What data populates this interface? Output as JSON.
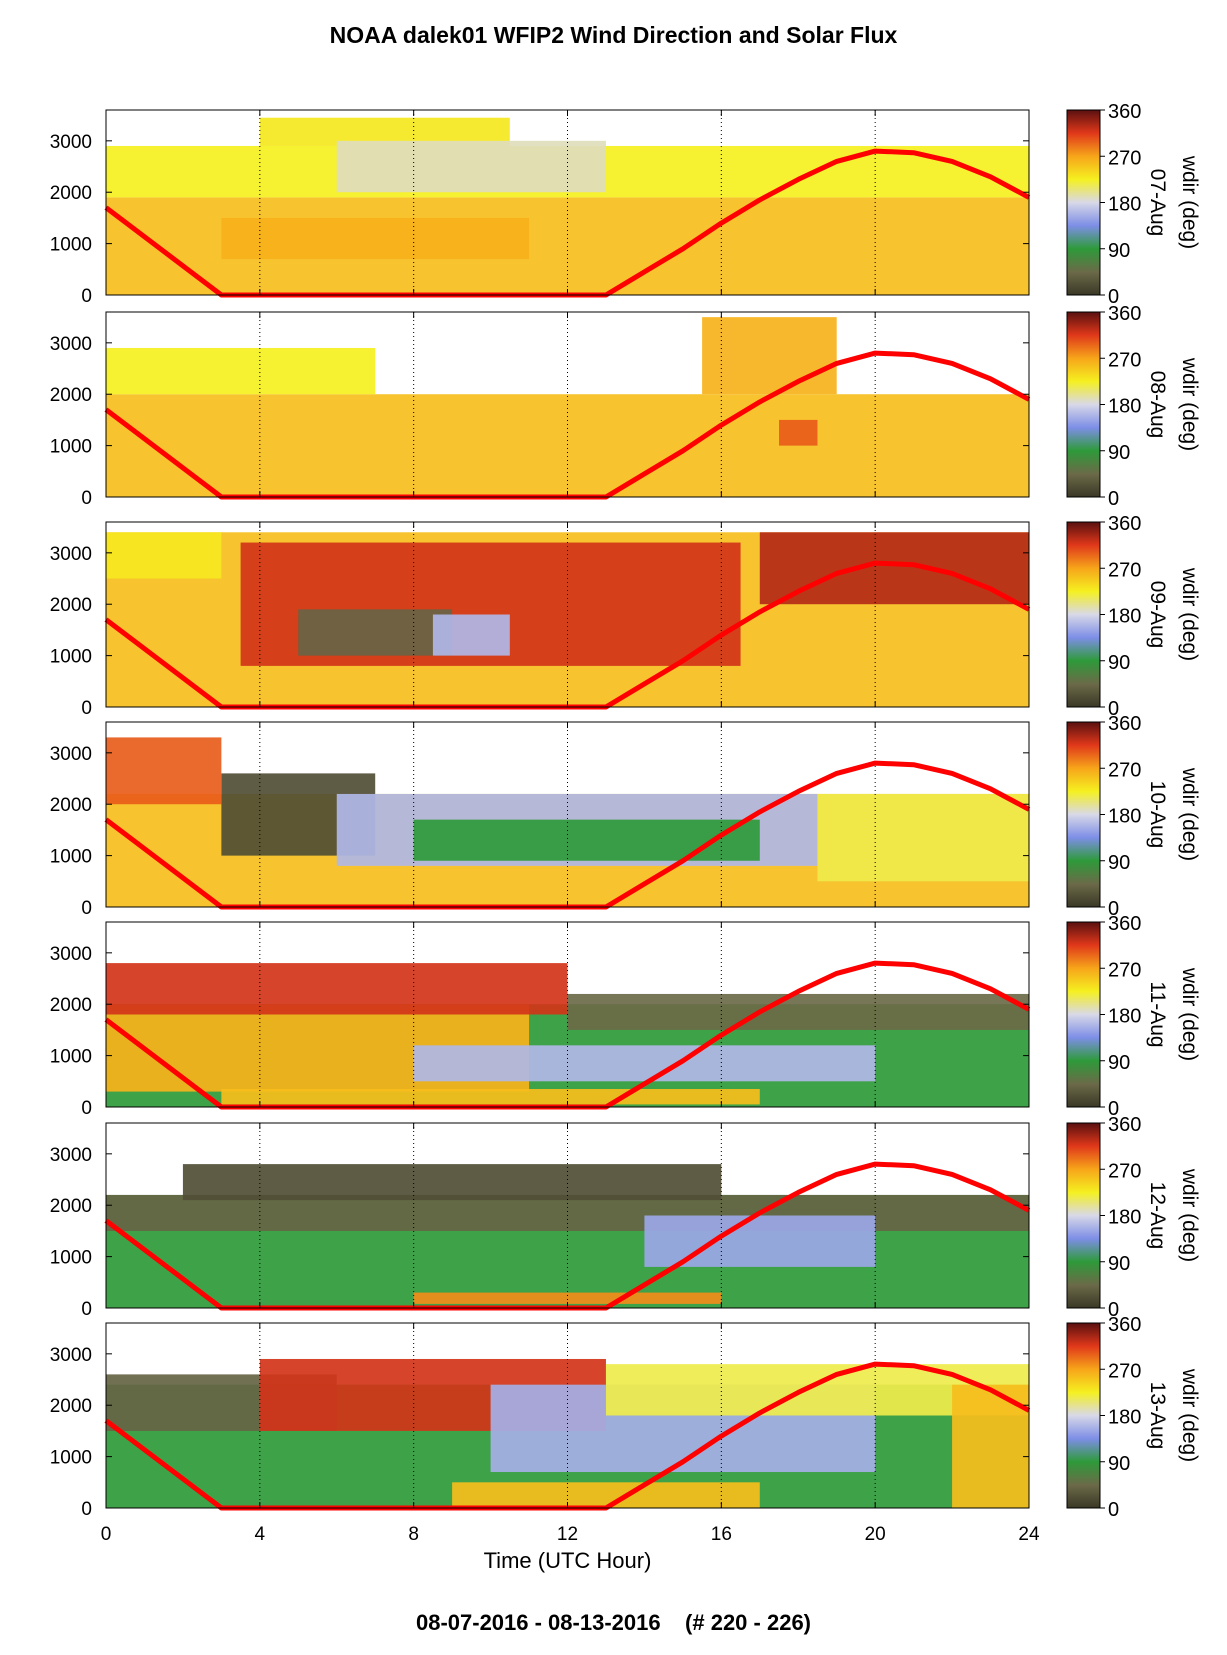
{
  "title": "NOAA dalek01 WFIP2 Wind Direction and Solar Flux",
  "footer": "08-07-2016 - 08-13-2016    (# 220 - 226)",
  "chart_data": {
    "type": "heatmap",
    "xlabel": "Time (UTC Hour)",
    "xlim": [
      0,
      24
    ],
    "xticks": [
      0,
      4,
      8,
      12,
      16,
      20,
      24
    ],
    "ylim": [
      0,
      3600
    ],
    "yticks": [
      0,
      1000,
      2000,
      3000
    ],
    "colorbar": {
      "label": "wdir (deg)",
      "ticks": [
        0,
        90,
        180,
        270,
        360
      ]
    },
    "colorscale": [
      "#3a3826",
      "#6b6a48",
      "#2e9a3a",
      "#7d8ee6",
      "#d8d8e8",
      "#f5f020",
      "#f7a51a",
      "#e0381a",
      "#5a1010"
    ],
    "solar_flux_color": "#ff0000",
    "solar_flux_curve": {
      "x": [
        0,
        3,
        13,
        14,
        15,
        16,
        17,
        18,
        19,
        20,
        21,
        22,
        23,
        24
      ],
      "y": [
        1700,
        0,
        0,
        450,
        900,
        1400,
        1850,
        2250,
        2600,
        2800,
        2770,
        2600,
        2300,
        1900
      ]
    },
    "panels": [
      {
        "date": "07-Aug",
        "regions": [
          {
            "x0": 0,
            "x1": 24,
            "y0": 0,
            "y1": 1900,
            "deg": 255
          },
          {
            "x0": 0,
            "x1": 24,
            "y0": 1900,
            "y1": 2900,
            "deg": 225
          },
          {
            "x0": 4,
            "x1": 10.5,
            "y0": 2900,
            "y1": 3450,
            "deg": 230
          },
          {
            "x0": 6,
            "x1": 13,
            "y0": 2000,
            "y1": 3000,
            "deg": 190
          },
          {
            "x0": 3,
            "x1": 11,
            "y0": 700,
            "y1": 1500,
            "deg": 262
          }
        ]
      },
      {
        "date": "08-Aug",
        "regions": [
          {
            "x0": 0,
            "x1": 24,
            "y0": 0,
            "y1": 2000,
            "deg": 255
          },
          {
            "x0": 0,
            "x1": 7,
            "y0": 2000,
            "y1": 2900,
            "deg": 225
          },
          {
            "x0": 15.5,
            "x1": 19,
            "y0": 2000,
            "y1": 3500,
            "deg": 262
          },
          {
            "x0": 17.5,
            "x1": 18.5,
            "y0": 1000,
            "y1": 1500,
            "deg": 300
          }
        ]
      },
      {
        "date": "09-Aug",
        "regions": [
          {
            "x0": 0,
            "x1": 24,
            "y0": 0,
            "y1": 3400,
            "deg": 255
          },
          {
            "x0": 3.5,
            "x1": 16.5,
            "y0": 800,
            "y1": 3200,
            "deg": 320
          },
          {
            "x0": 5,
            "x1": 9,
            "y0": 1000,
            "y1": 1900,
            "deg": 40
          },
          {
            "x0": 8.5,
            "x1": 10.5,
            "y0": 1000,
            "y1": 1800,
            "deg": 160
          },
          {
            "x0": 17,
            "x1": 24,
            "y0": 2000,
            "y1": 3400,
            "deg": 330
          },
          {
            "x0": 0,
            "x1": 3,
            "y0": 2500,
            "y1": 3400,
            "deg": 230
          }
        ]
      },
      {
        "date": "10-Aug",
        "regions": [
          {
            "x0": 0,
            "x1": 24,
            "y0": 0,
            "y1": 2200,
            "deg": 255
          },
          {
            "x0": 3,
            "x1": 7,
            "y0": 1000,
            "y1": 2600,
            "deg": 20
          },
          {
            "x0": 6,
            "x1": 18.5,
            "y0": 800,
            "y1": 2200,
            "deg": 160
          },
          {
            "x0": 8,
            "x1": 17,
            "y0": 900,
            "y1": 1700,
            "deg": 90
          },
          {
            "x0": 0,
            "x1": 3,
            "y0": 2000,
            "y1": 3300,
            "deg": 300
          },
          {
            "x0": 18.5,
            "x1": 24,
            "y0": 500,
            "y1": 2200,
            "deg": 215
          }
        ]
      },
      {
        "date": "11-Aug",
        "regions": [
          {
            "x0": 0,
            "x1": 24,
            "y0": 0,
            "y1": 2000,
            "deg": 90
          },
          {
            "x0": 0,
            "x1": 11,
            "y0": 300,
            "y1": 2000,
            "deg": 262
          },
          {
            "x0": 0,
            "x1": 12,
            "y0": 1800,
            "y1": 2800,
            "deg": 320
          },
          {
            "x0": 8,
            "x1": 20,
            "y0": 500,
            "y1": 1200,
            "deg": 160
          },
          {
            "x0": 12,
            "x1": 24,
            "y0": 1500,
            "y1": 2200,
            "deg": 45
          },
          {
            "x0": 3,
            "x1": 17,
            "y0": 50,
            "y1": 350,
            "deg": 255
          }
        ]
      },
      {
        "date": "12-Aug",
        "regions": [
          {
            "x0": 0,
            "x1": 24,
            "y0": 0,
            "y1": 2200,
            "deg": 90
          },
          {
            "x0": 0,
            "x1": 24,
            "y0": 1500,
            "y1": 2200,
            "deg": 40
          },
          {
            "x0": 2,
            "x1": 16,
            "y0": 2100,
            "y1": 2800,
            "deg": 20
          },
          {
            "x0": 14,
            "x1": 20,
            "y0": 800,
            "y1": 1800,
            "deg": 150
          },
          {
            "x0": 8,
            "x1": 16,
            "y0": 80,
            "y1": 300,
            "deg": 280
          }
        ]
      },
      {
        "date": "13-Aug",
        "regions": [
          {
            "x0": 0,
            "x1": 24,
            "y0": 0,
            "y1": 2400,
            "deg": 90
          },
          {
            "x0": 0,
            "x1": 6,
            "y0": 1500,
            "y1": 2600,
            "deg": 40
          },
          {
            "x0": 4,
            "x1": 13,
            "y0": 1500,
            "y1": 2900,
            "deg": 320
          },
          {
            "x0": 10,
            "x1": 20,
            "y0": 700,
            "y1": 2400,
            "deg": 155
          },
          {
            "x0": 13,
            "x1": 24,
            "y0": 1800,
            "y1": 2800,
            "deg": 215
          },
          {
            "x0": 9,
            "x1": 17,
            "y0": 0,
            "y1": 500,
            "deg": 255
          },
          {
            "x0": 22,
            "x1": 24,
            "y0": 0,
            "y1": 2400,
            "deg": 255
          }
        ]
      }
    ]
  }
}
